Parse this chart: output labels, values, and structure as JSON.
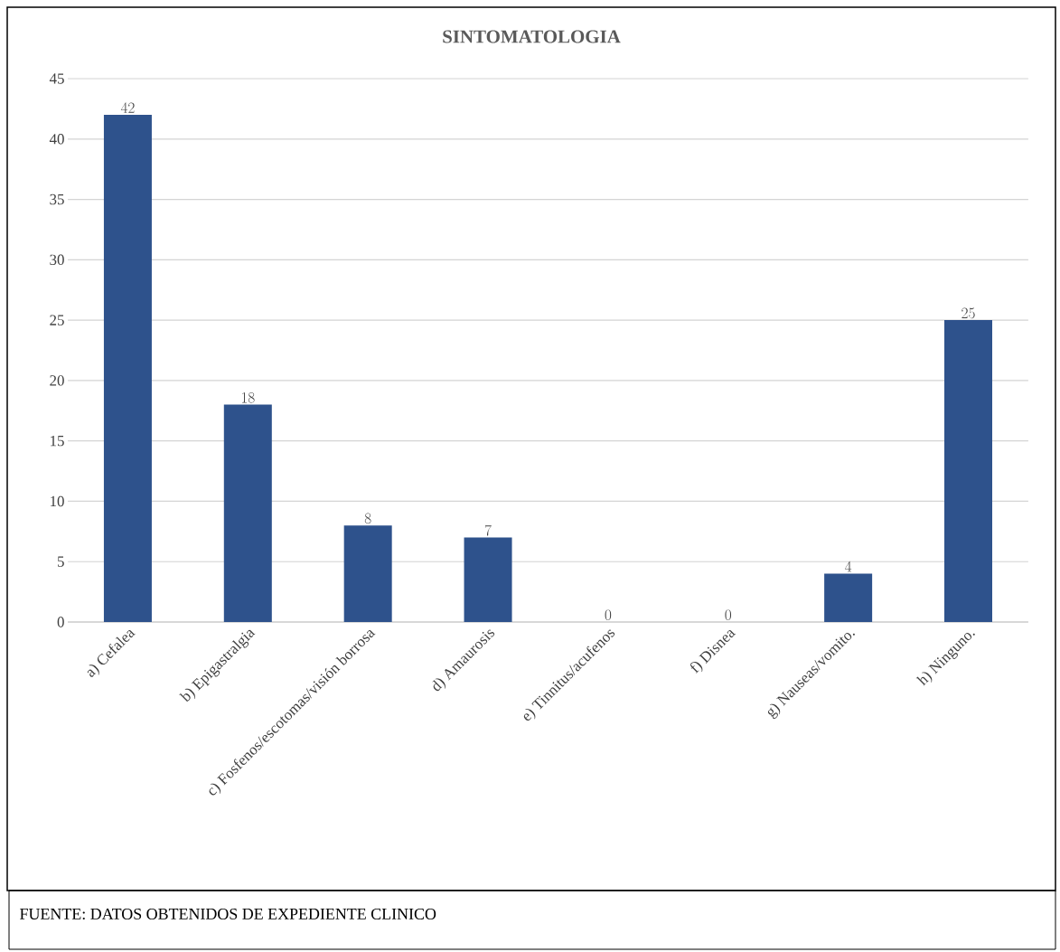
{
  "chart_data": {
    "type": "bar",
    "title": "SINTOMATOLOGIA",
    "categories": [
      "a) Cefalea",
      "b) Epigastralgia",
      "c) Fosfenos/escotomas/visión borrosa",
      "d) Amaurosis",
      "e) Tinnitus/acufenos",
      "f) Disnea",
      "g) Nauseas/vomito.",
      "h) Ninguno."
    ],
    "values": [
      42,
      18,
      8,
      7,
      0,
      0,
      4,
      25
    ],
    "color": "#2e528c",
    "ylim": [
      0,
      45
    ],
    "yticks": [
      0,
      5,
      10,
      15,
      20,
      25,
      30,
      35,
      40,
      45
    ],
    "grid": "y",
    "data_labels": true,
    "annotations": [
      "FUENTE: DATOS OBTENIDOS DE EXPEDIENTE CLINICO"
    ]
  }
}
